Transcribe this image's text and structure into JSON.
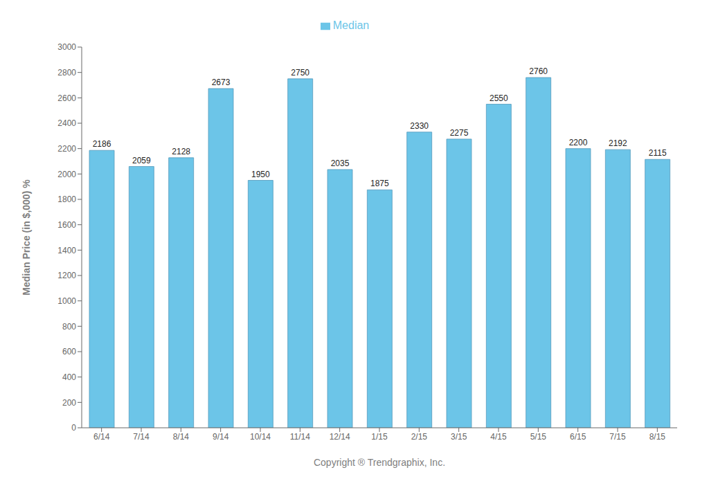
{
  "chart_data": {
    "type": "bar",
    "xlabel": "Copyright ® Trendgraphix, Inc.",
    "ylabel": "Median Price (in $,000) %",
    "categories": [
      "6/14",
      "7/14",
      "8/14",
      "9/14",
      "10/14",
      "11/14",
      "12/14",
      "1/15",
      "2/15",
      "3/15",
      "4/15",
      "5/15",
      "6/15",
      "7/15",
      "8/15"
    ],
    "series": [
      {
        "name": "Median",
        "color": "#6CC5E8",
        "values": [
          2186,
          2059,
          2128,
          2673,
          1950,
          2750,
          2035,
          1875,
          2330,
          2275,
          2550,
          2760,
          2200,
          2192,
          2115
        ]
      }
    ],
    "ylim": [
      0,
      3000
    ],
    "yticks": [
      0,
      200,
      400,
      600,
      800,
      1000,
      1200,
      1400,
      1600,
      1800,
      2000,
      2200,
      2400,
      2600,
      2800,
      3000
    ],
    "grid": false,
    "legend": "top",
    "data_labels": true
  }
}
